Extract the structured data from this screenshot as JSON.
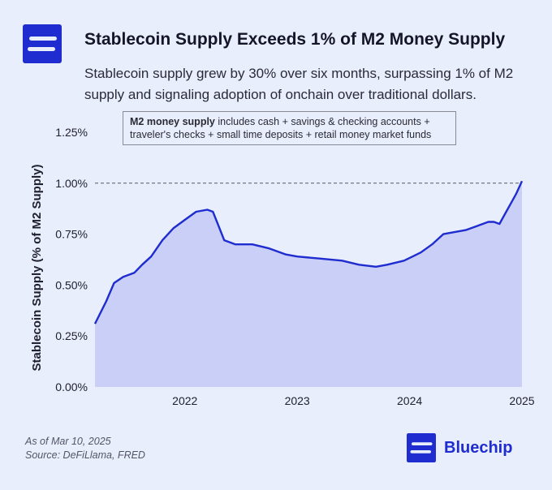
{
  "header": {
    "title": "Stablecoin Supply Exceeds 1% of M2 Money Supply",
    "subtitle": "Stablecoin supply grew by 30% over six months, surpassing 1% of M2 supply and signaling adoption of onchain over traditional dollars."
  },
  "note": {
    "bold": "M2 money supply",
    "text": " includes cash + savings & checking accounts + traveler's checks + small time deposits + retail money market funds"
  },
  "footer": {
    "date": "As of Mar 10, 2025",
    "source": "Source: DeFiLlama, FRED"
  },
  "brand": {
    "name": "Bluechip",
    "icon": "bluechip-logo-icon",
    "color": "#1f2ccf"
  },
  "colors": {
    "line": "#1f2ccf",
    "fill": "#c5cbf5",
    "background": "#e8eefb",
    "reference": "#555566"
  },
  "chart_data": {
    "type": "area",
    "ylabel": "Stablecoin Supply (% of M2 Supply)",
    "xlabel": "",
    "x_ticks": [
      "2022",
      "2023",
      "2024",
      "2025"
    ],
    "y_ticks": [
      "0.00%",
      "0.25%",
      "0.50%",
      "0.75%",
      "1.00%",
      "1.25%"
    ],
    "xlim": [
      2021.2,
      2025.0
    ],
    "ylim": [
      0,
      1.25
    ],
    "grid": false,
    "reference_line": {
      "y": 1.0,
      "style": "dashed"
    },
    "series": [
      {
        "x": [
          2021.2,
          2021.3,
          2021.37,
          2021.45,
          2021.55,
          2021.62,
          2021.7,
          2021.8,
          2021.9,
          2022.0,
          2022.1,
          2022.2,
          2022.25,
          2022.3,
          2022.35,
          2022.45,
          2022.6,
          2022.75,
          2022.9,
          2023.0,
          2023.2,
          2023.4,
          2023.55,
          2023.7,
          2023.8,
          2023.95,
          2024.1,
          2024.2,
          2024.3,
          2024.4,
          2024.5,
          2024.6,
          2024.7,
          2024.75,
          2024.8,
          2024.85,
          2024.9,
          2024.95,
          2025.0
        ],
        "y": [
          0.31,
          0.42,
          0.51,
          0.54,
          0.56,
          0.6,
          0.64,
          0.72,
          0.78,
          0.82,
          0.86,
          0.87,
          0.86,
          0.79,
          0.72,
          0.7,
          0.7,
          0.68,
          0.65,
          0.64,
          0.63,
          0.62,
          0.6,
          0.59,
          0.6,
          0.62,
          0.66,
          0.7,
          0.75,
          0.76,
          0.77,
          0.79,
          0.81,
          0.81,
          0.8,
          0.85,
          0.9,
          0.95,
          1.01
        ]
      }
    ]
  }
}
